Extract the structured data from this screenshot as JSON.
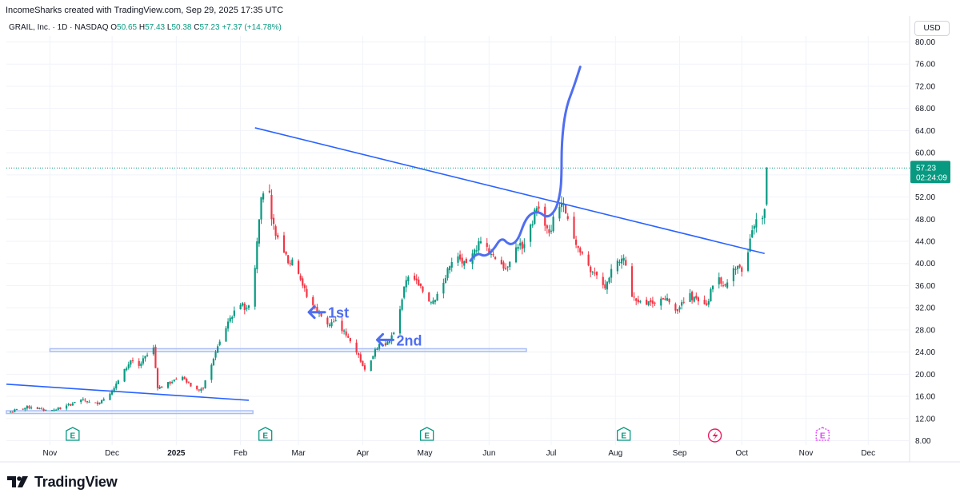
{
  "header": {
    "attribution": "IncomeSharks created with TradingView.com, Sep 29, 2025 17:35 UTC"
  },
  "symbol_bar": {
    "name": "GRAIL, Inc. · 1D · NASDAQ",
    "open_label": "O",
    "open": "50.65",
    "high_label": "H",
    "high": "57.43",
    "low_label": "L",
    "low": "50.38",
    "close_label": "C",
    "close": "57.23",
    "change": "+7.37 (+14.78%)"
  },
  "currency_button": "USD",
  "branding": {
    "name": "TradingView"
  },
  "colors": {
    "up": "#089981",
    "down": "#f23645",
    "trendline": "#2962ff",
    "annotation": "#4f6ef0",
    "grid": "#f0f3fa",
    "zone": "#a9bdf5",
    "axis_text": "#131722",
    "earnings_icon": "#089981",
    "future_earnings_icon": "#e040fb"
  },
  "chart_data": {
    "type": "candlestick",
    "title": "GRAIL, Inc. · 1D · NASDAQ",
    "y_axis": {
      "range": [
        7,
        82
      ],
      "ticks": [
        "80.00",
        "76.00",
        "72.00",
        "68.00",
        "64.00",
        "60.00",
        "56.00",
        "52.00",
        "48.00",
        "44.00",
        "40.00",
        "36.00",
        "32.00",
        "28.00",
        "24.00",
        "20.00",
        "16.00",
        "12.00",
        "8.00"
      ],
      "position": "right"
    },
    "x_axis": {
      "ticks": [
        {
          "label": "Nov",
          "day": 20
        },
        {
          "label": "Dec",
          "day": 50
        },
        {
          "label": "2025",
          "day": 81
        },
        {
          "label": "Feb",
          "day": 112
        },
        {
          "label": "Mar",
          "day": 140
        },
        {
          "label": "Apr",
          "day": 171
        },
        {
          "label": "May",
          "day": 201
        },
        {
          "label": "Jun",
          "day": 232
        },
        {
          "label": "Jul",
          "day": 262
        },
        {
          "label": "Aug",
          "day": 293
        },
        {
          "label": "Sep",
          "day": 324
        },
        {
          "label": "Oct",
          "day": 354
        },
        {
          "label": "Nov",
          "day": 385
        },
        {
          "label": "Dec",
          "day": 415
        }
      ],
      "range_days": [
        -1,
        435
      ]
    },
    "price_label": {
      "price": "57.23",
      "countdown": "02:24:09",
      "value": 57.23
    },
    "last_price_line": 57.23,
    "closes_anchor": [
      [
        1,
        13.2
      ],
      [
        6,
        13.8
      ],
      [
        12,
        14.2
      ],
      [
        17,
        13.4
      ],
      [
        22,
        13.6
      ],
      [
        27,
        14.0
      ],
      [
        32,
        15.0
      ],
      [
        36,
        15.5
      ],
      [
        41,
        14.5
      ],
      [
        46,
        15.5
      ],
      [
        51,
        17.5
      ],
      [
        55,
        20.0
      ],
      [
        59,
        22.5
      ],
      [
        63,
        21.5
      ],
      [
        67,
        23.5
      ],
      [
        70,
        24.8
      ],
      [
        72,
        17.5
      ],
      [
        76,
        18.0
      ],
      [
        80,
        19.0
      ],
      [
        84,
        19.5
      ],
      [
        87,
        18.5
      ],
      [
        90,
        17.0
      ],
      [
        94,
        17.5
      ],
      [
        97,
        21.0
      ],
      [
        100,
        24.0
      ],
      [
        103,
        26.5
      ],
      [
        106,
        29.5
      ],
      [
        109,
        31.5
      ],
      [
        112,
        32.5
      ],
      [
        115,
        32.0
      ],
      [
        118,
        35.0
      ],
      [
        120,
        44.0
      ],
      [
        122,
        52.0
      ],
      [
        124,
        55.0
      ],
      [
        125,
        57.0
      ],
      [
        127,
        48.0
      ],
      [
        129,
        45.0
      ],
      [
        131,
        46.0
      ],
      [
        133,
        42.0
      ],
      [
        136,
        40.0
      ],
      [
        139,
        40.0
      ],
      [
        142,
        36.0
      ],
      [
        145,
        33.0
      ],
      [
        148,
        32.0
      ],
      [
        151,
        30.5
      ],
      [
        154,
        29.0
      ],
      [
        157,
        29.5
      ],
      [
        160,
        28.5
      ],
      [
        163,
        27.0
      ],
      [
        166,
        25.5
      ],
      [
        169,
        23.5
      ],
      [
        171,
        21.5
      ],
      [
        173,
        21.0
      ],
      [
        175,
        22.5
      ],
      [
        177,
        24.5
      ],
      [
        179,
        25.5
      ],
      [
        181,
        24.5
      ],
      [
        184,
        26.0
      ],
      [
        186,
        27.5
      ],
      [
        188,
        29.5
      ],
      [
        190,
        33.5
      ],
      [
        192,
        37.0
      ],
      [
        195,
        37.5
      ],
      [
        198,
        36.0
      ],
      [
        201,
        34.5
      ],
      [
        204,
        33.0
      ],
      [
        207,
        34.5
      ],
      [
        210,
        36.5
      ],
      [
        213,
        39.5
      ],
      [
        216,
        41.0
      ],
      [
        219,
        40.0
      ],
      [
        222,
        39.0
      ],
      [
        225,
        42.5
      ],
      [
        228,
        44.0
      ],
      [
        231,
        43.0
      ],
      [
        234,
        41.5
      ],
      [
        237,
        40.5
      ],
      [
        240,
        39.0
      ],
      [
        243,
        42.0
      ],
      [
        246,
        43.0
      ],
      [
        249,
        43.5
      ],
      [
        252,
        47.0
      ],
      [
        255,
        50.0
      ],
      [
        258,
        48.5
      ],
      [
        261,
        45.5
      ],
      [
        264,
        49.0
      ],
      [
        267,
        51.0
      ],
      [
        269,
        49.0
      ],
      [
        271,
        46.0
      ],
      [
        273,
        44.5
      ],
      [
        276,
        42.0
      ],
      [
        279,
        40.5
      ],
      [
        282,
        38.5
      ],
      [
        285,
        36.5
      ],
      [
        288,
        35.5
      ],
      [
        291,
        39.0
      ],
      [
        294,
        40.5
      ],
      [
        297,
        41.0
      ],
      [
        299,
        38.0
      ],
      [
        301,
        34.0
      ],
      [
        304,
        33.0
      ],
      [
        307,
        32.5
      ],
      [
        310,
        33.0
      ],
      [
        313,
        32.0
      ],
      [
        316,
        33.5
      ],
      [
        319,
        33.0
      ],
      [
        322,
        31.5
      ],
      [
        325,
        33.0
      ],
      [
        328,
        34.0
      ],
      [
        331,
        34.0
      ],
      [
        334,
        32.0
      ],
      [
        337,
        32.5
      ],
      [
        340,
        36.0
      ],
      [
        343,
        37.5
      ],
      [
        346,
        36.0
      ],
      [
        348,
        38.0
      ],
      [
        351,
        39.0
      ],
      [
        354,
        38.5
      ],
      [
        357,
        42.0
      ],
      [
        359,
        46.0
      ],
      [
        361,
        48.0
      ],
      [
        363,
        47.0
      ],
      [
        365,
        49.8
      ],
      [
        366,
        57.23
      ]
    ],
    "drawings": {
      "upper_resistance": {
        "from": [
          119,
          64.5
        ],
        "to": [
          365,
          41.8
        ]
      },
      "lower_trendline": {
        "from": [
          -1,
          18.2
        ],
        "to": [
          116,
          15.3
        ]
      },
      "support_zone_upper": {
        "from_day": 20,
        "to_day": 250,
        "low": 24.1,
        "high": 24.6
      },
      "support_zone_lower": {
        "from_day": -1,
        "to_day": 118,
        "low": 12.9,
        "high": 13.4
      },
      "projection_path": [
        [
          223,
          40.5
        ],
        [
          226,
          42.0
        ],
        [
          230,
          41.2
        ],
        [
          234,
          42.4
        ],
        [
          238,
          44.8
        ],
        [
          242,
          43.2
        ],
        [
          246,
          44.2
        ],
        [
          249,
          47.5
        ],
        [
          252,
          49.0
        ],
        [
          256,
          49.4
        ],
        [
          260,
          48.2
        ],
        [
          264,
          49.5
        ],
        [
          266,
          52.0
        ],
        [
          267,
          55.0
        ],
        [
          267,
          62.0
        ],
        [
          269,
          68.0
        ],
        [
          273,
          72.0
        ],
        [
          276,
          75.5
        ]
      ],
      "arrow_1": {
        "tip": [
          145,
          31.2
        ],
        "label": "1st"
      },
      "arrow_2": {
        "tip": [
          178,
          26.2
        ],
        "label": "2nd"
      }
    },
    "events": {
      "earnings_days": [
        31,
        124,
        202,
        297
      ],
      "future_earnings_day": 393,
      "dividend_day": 341,
      "earnings_label": "E"
    }
  }
}
